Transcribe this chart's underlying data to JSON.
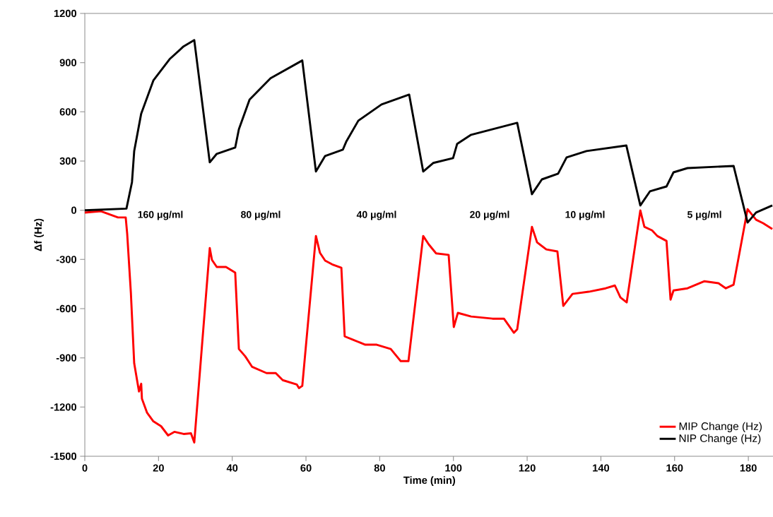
{
  "chart_data": {
    "type": "line",
    "xlabel": "Time (min)",
    "ylabel": "Δf (Hz)",
    "xlim": [
      0,
      187
    ],
    "xticks": [
      0,
      20,
      40,
      60,
      80,
      100,
      120,
      140,
      160,
      180
    ],
    "ylim": [
      -1500,
      1200
    ],
    "yticks": [
      -1500,
      -1200,
      -900,
      -600,
      -300,
      0,
      300,
      600,
      900,
      1200
    ],
    "grid": false,
    "legend": "bottom right",
    "marker": "none",
    "line_style": "solid",
    "series": [
      {
        "name": "MIP Change (Hz)",
        "color": "#ff0000",
        "x": [
          0,
          4.4,
          9,
          11.1,
          11.5,
          12.5,
          13.4,
          14.7,
          15.3,
          15.5,
          16.9,
          18.6,
          20.7,
          22.6,
          24.3,
          26.8,
          28.8,
          29.7,
          33.9,
          34.5,
          35.8,
          38.3,
          40.8,
          41.8,
          43.5,
          45.4,
          49.3,
          51.8,
          53.7,
          57.5,
          58.1,
          59.0,
          62.7,
          63.8,
          65.2,
          67.1,
          69.6,
          70.5,
          72.8,
          76.1,
          79.2,
          83.0,
          85.7,
          87.8,
          91.8,
          93.3,
          95.3,
          98.7,
          100.1,
          101.2,
          104.8,
          110.6,
          113.7,
          116.4,
          117.3,
          121.3,
          122.7,
          125.2,
          128.2,
          129.8,
          132.3,
          136.7,
          141.3,
          143.8,
          145.3,
          147.0,
          150.7,
          151.8,
          153.9,
          155.3,
          157.8,
          158.9,
          159.7,
          163.5,
          168.1,
          171.9,
          173.9,
          176.0,
          179.8,
          182.1,
          184.0,
          186.5
        ],
        "values": [
          -14,
          -6,
          -44,
          -44,
          -143,
          -503,
          -933,
          -1105,
          -1058,
          -1149,
          -1235,
          -1287,
          -1317,
          -1373,
          -1351,
          -1364,
          -1360,
          -1416,
          -231,
          -303,
          -346,
          -346,
          -380,
          -846,
          -890,
          -955,
          -993,
          -993,
          -1036,
          -1062,
          -1084,
          -1071,
          -157,
          -260,
          -307,
          -330,
          -351,
          -769,
          -790,
          -820,
          -820,
          -846,
          -920,
          -920,
          -157,
          -208,
          -263,
          -272,
          -712,
          -626,
          -648,
          -661,
          -661,
          -747,
          -726,
          -101,
          -196,
          -239,
          -251,
          -583,
          -510,
          -497,
          -476,
          -459,
          -532,
          -562,
          -1,
          -101,
          -123,
          -157,
          -187,
          -545,
          -489,
          -476,
          -433,
          -445,
          -476,
          -454,
          7,
          -58,
          -79,
          -114
        ]
      },
      {
        "name": "NIP Change (Hz)",
        "color": "#000000",
        "x": [
          0,
          11.3,
          12.8,
          13.4,
          15.3,
          18.6,
          23.0,
          26.8,
          29.7,
          33.9,
          35.8,
          40.8,
          41.8,
          44.7,
          50.4,
          59.0,
          62.7,
          65.2,
          70.0,
          70.9,
          74.2,
          80.5,
          88.0,
          91.8,
          94.5,
          99.9,
          101.0,
          104.8,
          117.3,
          121.3,
          124.0,
          128.4,
          130.7,
          136.1,
          146.9,
          150.7,
          153.3,
          157.8,
          159.7,
          163.5,
          176.0,
          179.8,
          182.1,
          186.5
        ],
        "values": [
          0,
          10,
          171,
          360,
          589,
          791,
          921,
          999,
          1037,
          292,
          344,
          382,
          494,
          675,
          805,
          913,
          236,
          331,
          369,
          417,
          546,
          645,
          705,
          236,
          288,
          318,
          404,
          460,
          533,
          98,
          188,
          223,
          322,
          361,
          395,
          29,
          115,
          145,
          231,
          257,
          270,
          -75,
          -14,
          29
        ]
      }
    ],
    "annotations": [
      "160 μg/ml",
      "80 μg/ml",
      "40 μg/ml",
      "20 μg/ml",
      "10 μg/ml",
      "5 μg/ml"
    ]
  }
}
